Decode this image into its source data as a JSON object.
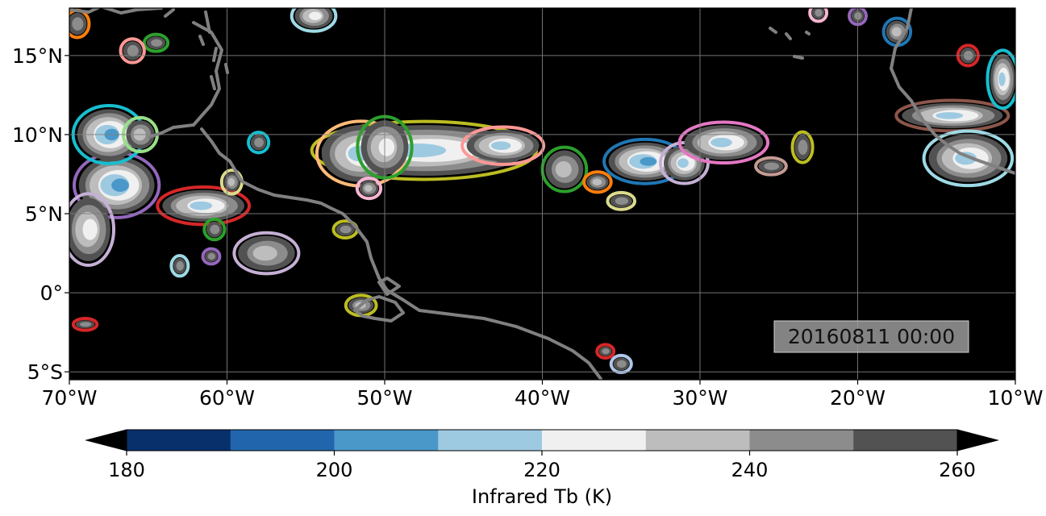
{
  "map": {
    "timestamp": "20160811 00:00",
    "extent": {
      "lon": [
        -70,
        -10
      ],
      "lat": [
        -5.5,
        18
      ]
    },
    "lon_ticks": [
      {
        "value": -70,
        "label": "70°W"
      },
      {
        "value": -60,
        "label": "60°W"
      },
      {
        "value": -50,
        "label": "50°W"
      },
      {
        "value": -40,
        "label": "40°W"
      },
      {
        "value": -30,
        "label": "30°W"
      },
      {
        "value": -20,
        "label": "20°W"
      },
      {
        "value": -10,
        "label": "10°W"
      }
    ],
    "lat_ticks": [
      {
        "value": -5,
        "label": "5°S"
      },
      {
        "value": 0,
        "label": "0°"
      },
      {
        "value": 5,
        "label": "5°N"
      },
      {
        "value": 10,
        "label": "10°N"
      },
      {
        "value": 15,
        "label": "15°N"
      }
    ],
    "background_color": "#000000",
    "coastline_color": "#808080",
    "grid": true,
    "grid_color": "#808080"
  },
  "colorbar": {
    "label": "Infrared Tb (K)",
    "range": [
      180,
      260
    ],
    "extend": "both",
    "ticks": [
      {
        "value": 180,
        "label": "180"
      },
      {
        "value": 200,
        "label": "200"
      },
      {
        "value": 220,
        "label": "220"
      },
      {
        "value": 240,
        "label": "240"
      },
      {
        "value": 260,
        "label": "260"
      }
    ],
    "bins": [
      {
        "from": 180,
        "to": 190,
        "color": "#08306b"
      },
      {
        "from": 190,
        "to": 200,
        "color": "#2166ac"
      },
      {
        "from": 200,
        "to": 210,
        "color": "#4a98c9"
      },
      {
        "from": 210,
        "to": 220,
        "color": "#9ecae1"
      },
      {
        "from": 220,
        "to": 230,
        "color": "#f0f0f0"
      },
      {
        "from": 230,
        "to": 240,
        "color": "#bdbdbd"
      },
      {
        "from": 240,
        "to": 250,
        "color": "#8c8c8c"
      },
      {
        "from": 250,
        "to": 260,
        "color": "#525252"
      }
    ]
  },
  "storm_systems": [
    {
      "lon": -47.5,
      "lat": 9.0,
      "rx": 6.5,
      "ry": 1.6,
      "min_tb": 215,
      "outline": "#bcbd22"
    },
    {
      "lon": -51.5,
      "lat": 8.8,
      "rx": 2.5,
      "ry": 1.8,
      "min_tb": 215,
      "outline": "#ffbb78"
    },
    {
      "lon": -50.0,
      "lat": 9.2,
      "rx": 1.5,
      "ry": 1.7,
      "min_tb": 225,
      "outline": "#2ca02c"
    },
    {
      "lon": -42.5,
      "lat": 9.3,
      "rx": 2.3,
      "ry": 1.0,
      "min_tb": 210,
      "outline": "#ff9896"
    },
    {
      "lon": -38.6,
      "lat": 7.8,
      "rx": 1.2,
      "ry": 1.2,
      "min_tb": 230,
      "outline": "#2ca02c"
    },
    {
      "lon": -33.5,
      "lat": 8.3,
      "rx": 2.3,
      "ry": 1.2,
      "min_tb": 205,
      "outline": "#1f77b4"
    },
    {
      "lon": -31.0,
      "lat": 8.2,
      "rx": 1.3,
      "ry": 1.1,
      "min_tb": 215,
      "outline": "#c5b0d5"
    },
    {
      "lon": -28.5,
      "lat": 9.5,
      "rx": 2.5,
      "ry": 1.1,
      "min_tb": 215,
      "outline": "#e377c2"
    },
    {
      "lon": -36.5,
      "lat": 7.0,
      "rx": 0.7,
      "ry": 0.5,
      "min_tb": 235,
      "outline": "#ff7f0e"
    },
    {
      "lon": -61.5,
      "lat": 5.5,
      "rx": 2.6,
      "ry": 1.0,
      "min_tb": 215,
      "outline": "#d62728"
    },
    {
      "lon": -57.5,
      "lat": 2.5,
      "rx": 1.8,
      "ry": 1.1,
      "min_tb": 230,
      "outline": "#c5b0d5"
    },
    {
      "lon": -67.0,
      "lat": 6.8,
      "rx": 2.4,
      "ry": 1.8,
      "min_tb": 200,
      "outline": "#9467bd"
    },
    {
      "lon": -67.5,
      "lat": 10.0,
      "rx": 2.0,
      "ry": 1.6,
      "min_tb": 205,
      "outline": "#17becf"
    },
    {
      "lon": -65.5,
      "lat": 10.0,
      "rx": 0.9,
      "ry": 0.9,
      "min_tb": 235,
      "outline": "#98df8a"
    },
    {
      "lon": -68.8,
      "lat": 4.0,
      "rx": 1.4,
      "ry": 2.0,
      "min_tb": 225,
      "outline": "#c5b0d5"
    },
    {
      "lon": -14.0,
      "lat": 11.2,
      "rx": 3.2,
      "ry": 0.8,
      "min_tb": 210,
      "outline": "#8c564b"
    },
    {
      "lon": -13.0,
      "lat": 8.5,
      "rx": 2.5,
      "ry": 1.5,
      "min_tb": 210,
      "outline": "#9edae5"
    },
    {
      "lon": -10.8,
      "lat": 13.5,
      "rx": 0.8,
      "ry": 1.6,
      "min_tb": 215,
      "outline": "#17becf"
    },
    {
      "lon": -54.5,
      "lat": 17.5,
      "rx": 1.2,
      "ry": 0.8,
      "min_tb": 225,
      "outline": "#9edae5"
    },
    {
      "lon": -51.0,
      "lat": 6.6,
      "rx": 0.6,
      "ry": 0.5,
      "min_tb": 230,
      "outline": "#f7b6d2"
    },
    {
      "lon": -59.7,
      "lat": 7.0,
      "rx": 0.5,
      "ry": 0.6,
      "min_tb": 230,
      "outline": "#dbdb8d"
    },
    {
      "lon": -52.5,
      "lat": 4.0,
      "rx": 0.6,
      "ry": 0.4,
      "min_tb": 240,
      "outline": "#bcbd22"
    },
    {
      "lon": -51.5,
      "lat": -0.8,
      "rx": 0.8,
      "ry": 0.5,
      "min_tb": 235,
      "outline": "#bcbd22"
    },
    {
      "lon": -23.5,
      "lat": 9.2,
      "rx": 0.5,
      "ry": 0.8,
      "min_tb": 240,
      "outline": "#bcbd22"
    },
    {
      "lon": -35.0,
      "lat": 5.8,
      "rx": 0.7,
      "ry": 0.4,
      "min_tb": 240,
      "outline": "#dbdb8d"
    },
    {
      "lon": -17.5,
      "lat": 16.5,
      "rx": 0.7,
      "ry": 0.7,
      "min_tb": 235,
      "outline": "#1f77b4"
    },
    {
      "lon": -13.0,
      "lat": 15.0,
      "rx": 0.5,
      "ry": 0.5,
      "min_tb": 240,
      "outline": "#d62728"
    },
    {
      "lon": -69.5,
      "lat": 17.0,
      "rx": 0.6,
      "ry": 0.7,
      "min_tb": 240,
      "outline": "#ff7f0e"
    },
    {
      "lon": -64.5,
      "lat": 15.8,
      "rx": 0.6,
      "ry": 0.4,
      "min_tb": 240,
      "outline": "#2ca02c"
    },
    {
      "lon": -66.0,
      "lat": 15.3,
      "rx": 0.6,
      "ry": 0.6,
      "min_tb": 240,
      "outline": "#ff9896"
    },
    {
      "lon": -58.0,
      "lat": 9.5,
      "rx": 0.5,
      "ry": 0.5,
      "min_tb": 240,
      "outline": "#17becf"
    },
    {
      "lon": -36.0,
      "lat": -3.7,
      "rx": 0.4,
      "ry": 0.3,
      "min_tb": 245,
      "outline": "#d62728"
    },
    {
      "lon": -35.0,
      "lat": -4.5,
      "rx": 0.5,
      "ry": 0.4,
      "min_tb": 245,
      "outline": "#aec7e8"
    },
    {
      "lon": -69.0,
      "lat": -2.0,
      "rx": 0.6,
      "ry": 0.25,
      "min_tb": 245,
      "outline": "#d62728"
    },
    {
      "lon": -61.0,
      "lat": 2.3,
      "rx": 0.4,
      "ry": 0.35,
      "min_tb": 245,
      "outline": "#9467bd"
    },
    {
      "lon": -63.0,
      "lat": 1.7,
      "rx": 0.4,
      "ry": 0.5,
      "min_tb": 245,
      "outline": "#9edae5"
    },
    {
      "lon": -60.8,
      "lat": 4.0,
      "rx": 0.5,
      "ry": 0.5,
      "min_tb": 240,
      "outline": "#2ca02c"
    },
    {
      "lon": -25.5,
      "lat": 8.0,
      "rx": 0.8,
      "ry": 0.4,
      "min_tb": 245,
      "outline": "#c49c94"
    },
    {
      "lon": -20.0,
      "lat": 17.5,
      "rx": 0.4,
      "ry": 0.4,
      "min_tb": 245,
      "outline": "#9467bd"
    },
    {
      "lon": -22.5,
      "lat": 17.7,
      "rx": 0.4,
      "ry": 0.4,
      "min_tb": 245,
      "outline": "#f7b6d2"
    }
  ]
}
